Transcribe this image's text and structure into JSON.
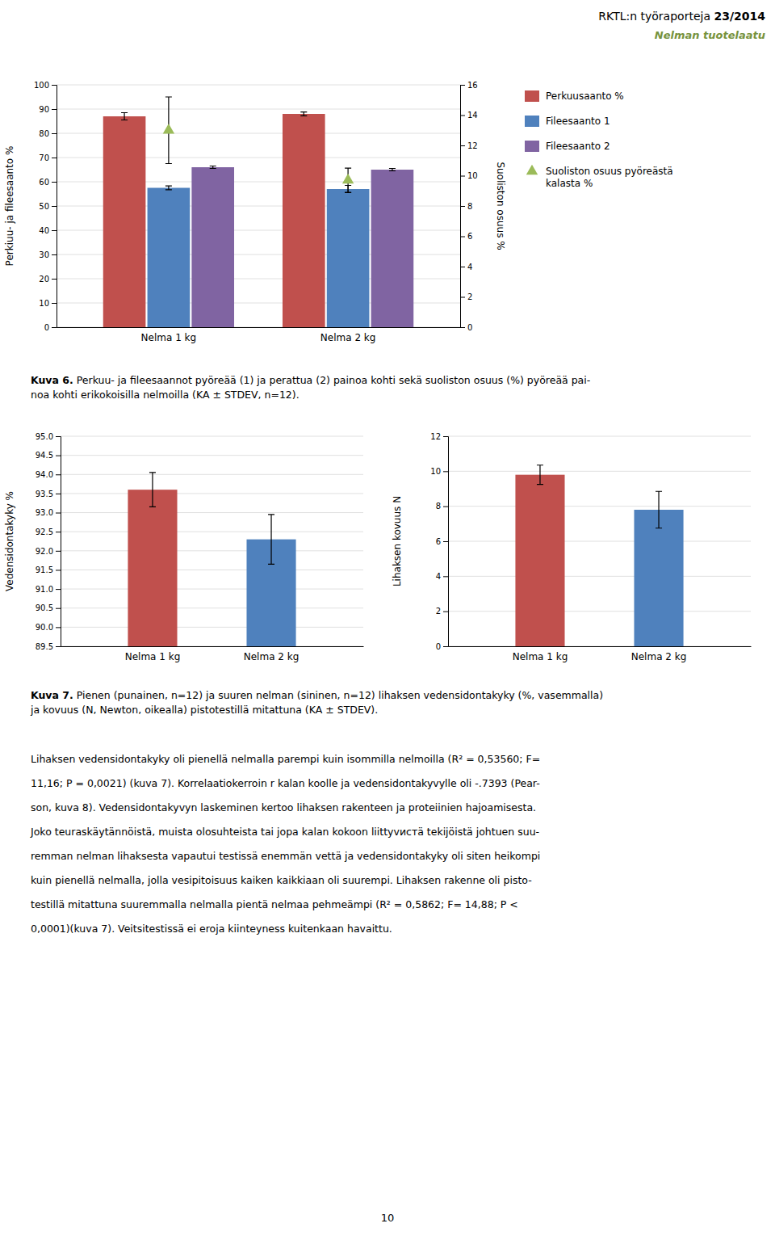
{
  "header": {
    "title": "RKTL:n työraporteja ",
    "title_bold": "23/2014",
    "title_color": "#000000",
    "subtitle": "Nelman tuotelaatu",
    "subtitle_color": "#76923C"
  },
  "chart_data": [
    {
      "type": "bar",
      "categories": [
        "Nelma 1 kg",
        "Nelma 2 kg"
      ],
      "series": [
        {
          "name": "Perkuusaanto %",
          "color": "#C0504D",
          "values": [
            87.0,
            88.0
          ],
          "errors": [
            1.5,
            0.8
          ]
        },
        {
          "name": "Fileesaanto 1",
          "color": "#4F81BD",
          "values": [
            57.5,
            57.0
          ],
          "errors": [
            0.8,
            1.5
          ]
        },
        {
          "name": "Fileesaanto 2",
          "color": "#8064A2",
          "values": [
            66.0,
            65.0
          ],
          "errors": [
            0.5,
            0.5
          ]
        },
        {
          "name": "Suoliston osuus pyöreästä\nkalasta %",
          "type": "scatter",
          "marker": "triangle",
          "axis": "y2",
          "color": "#9BBB59",
          "values": [
            13.0,
            9.7
          ],
          "errors": [
            2.2,
            0.8
          ]
        }
      ],
      "ylabel": "Perkiuu- ja fileesaanto %",
      "y2label": "Suoliston osuus %",
      "ylim": [
        0,
        100
      ],
      "yticks": [
        0,
        10,
        20,
        30,
        40,
        50,
        60,
        70,
        80,
        90,
        100
      ],
      "y2lim": [
        0,
        16
      ],
      "y2ticks": [
        0,
        2,
        4,
        6,
        8,
        10,
        12,
        14,
        16
      ],
      "grid": true,
      "legend": "right"
    },
    {
      "type": "bar",
      "categories": [
        "Nelma 1 kg",
        "Nelma 2 kg"
      ],
      "values": [
        93.6,
        92.3
      ],
      "errors": [
        0.45,
        0.65
      ],
      "colors": [
        "#C0504D",
        "#4F81BD"
      ],
      "ylabel": "Vedensidontakyky %",
      "ylim": [
        89.5,
        95.0
      ],
      "yticks": [
        89.5,
        {
          "value": 90.0,
          "label": "90.0"
        },
        90.5,
        {
          "value": 91.0,
          "label": "91.0"
        },
        91.5,
        {
          "value": 92.0,
          "label": "92.0"
        },
        92.5,
        {
          "value": 93.0,
          "label": "93.0"
        },
        93.5,
        {
          "value": 94.0,
          "label": "94.0"
        },
        94.5,
        {
          "value": 95.0,
          "label": "95.0"
        }
      ],
      "grid": true
    },
    {
      "type": "bar",
      "categories": [
        "Nelma 1 kg",
        "Nelma 2 kg"
      ],
      "values": [
        9.8,
        7.8
      ],
      "errors": [
        0.55,
        1.05
      ],
      "colors": [
        "#C0504D",
        "#4F81BD"
      ],
      "ylabel": "Lihaksen kovuus N",
      "ylim": [
        0,
        12
      ],
      "yticks": [
        0,
        2,
        4,
        6,
        8,
        10,
        12
      ],
      "grid": true
    }
  ],
  "captions": [
    {
      "bold": "Kuva 6.",
      "text": " Perkuu- ja fileesaannot pyöreää (1) ja perattua (2) painoa kohti sekä suoliston osuus (%) pyöreää pai-\nnoa kohti erikokoisilla nelmoilla (KA ± STDEV, n=12)."
    },
    {
      "bold": "Kuva 7.",
      "text": " Pienen (punainen, n=12) ja suuren nelman (sininen, n=12) lihaksen vedensidontakyky (%, vasemmalla)\nja kovuus (N, Newton, oikealla) pistotestillä mitattuna (KA ± STDEV)."
    }
  ],
  "body_lines": [
    "Lihaksen vedensidontakyky oli pienellä nelmalla parempi kuin isommilla nelmoilla (R² = 0,53560; F=",
    "11,16; P = 0,0021) (kuva 7). Korrelaatiokerroin r kalan koolle ja vedensidontakyvylle oli -.7393 (Pear-",
    "son, kuva 8). Vedensidontakyvyn laskeminen kertoo lihaksen rakenteen ja proteiinien hajoamisesta.",
    "Joko teuraskäytännöistä, muista olosuhteista tai jopa kalan kokoon liittyvистä tekijöistä johtuen suu-",
    "remman nelman lihaksesta vapautui testissä enemmän vettä ja vedensidontakyky oli siten heikompi",
    "kuin pienellä nelmalla, jolla vesipitoisuus kaiken kaikkiaan oli suurempi. Lihaksen rakenne oli pisto-",
    "testillä mitattuna suuremmalla nelmalla pientä nelmaa pehmeämpi (R² = 0,5862; F= 14,88; P <",
    "0,0001)(kuva 7). Veitsitestissä ei eroja kiinteyness kuitenkaan havaittu."
  ],
  "page_number": "10"
}
